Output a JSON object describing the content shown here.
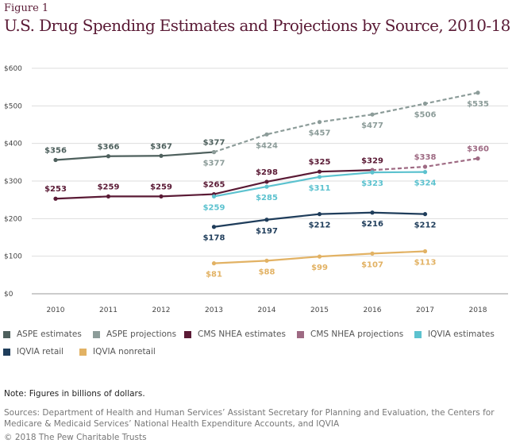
{
  "figure_label": "Figure 1",
  "chart_data": {
    "type": "line",
    "title": "U.S. Drug Spending Estimates and Projections by Source, 2010-18",
    "x": [
      2010,
      2011,
      2012,
      2013,
      2014,
      2015,
      2016,
      2017,
      2018
    ],
    "x_tick_labels": [
      "2010",
      "2011",
      "2012",
      "2013",
      "2014",
      "2015",
      "2016",
      "2017",
      "2018"
    ],
    "y_tick_labels": [
      "$0",
      "$100",
      "$200",
      "$300",
      "$400",
      "$500",
      "$600"
    ],
    "ylim": [
      0,
      600
    ],
    "grid": true,
    "legend_position": "bottom",
    "series": [
      {
        "name": "ASPE estimates",
        "color": "#4e605d",
        "dashed": false,
        "label_pos": "above",
        "points": [
          [
            2010,
            356
          ],
          [
            2011,
            366
          ],
          [
            2012,
            367
          ],
          [
            2013,
            377
          ]
        ],
        "labels": [
          "$356",
          "$366",
          "$367",
          "$377"
        ]
      },
      {
        "name": "ASPE projections",
        "color": "#8c9c99",
        "dashed": true,
        "label_pos": "below",
        "points": [
          [
            2013,
            377
          ],
          [
            2014,
            424
          ],
          [
            2015,
            457
          ],
          [
            2016,
            477
          ],
          [
            2017,
            506
          ],
          [
            2018,
            535
          ]
        ],
        "labels": [
          "$377",
          "$424",
          "$457",
          "$477",
          "$506",
          "$535"
        ]
      },
      {
        "name": "CMS NHEA estimates",
        "color": "#5a1a35",
        "dashed": false,
        "label_pos": "above",
        "points": [
          [
            2010,
            253
          ],
          [
            2011,
            259
          ],
          [
            2012,
            259
          ],
          [
            2013,
            265
          ],
          [
            2014,
            298
          ],
          [
            2015,
            325
          ],
          [
            2016,
            329
          ]
        ],
        "labels": [
          "$253",
          "$259",
          "$259",
          "$265",
          "$298",
          "$325",
          "$329"
        ]
      },
      {
        "name": "CMS NHEA projections",
        "color": "#9e6a83",
        "dashed": true,
        "label_pos": "above",
        "points": [
          [
            2016,
            329
          ],
          [
            2017,
            338
          ],
          [
            2018,
            360
          ]
        ],
        "labels": [
          "",
          "$338",
          "$360"
        ]
      },
      {
        "name": "IQVIA estimates",
        "color": "#5cc2cf",
        "dashed": false,
        "label_pos": "below",
        "points": [
          [
            2013,
            259
          ],
          [
            2014,
            285
          ],
          [
            2015,
            311
          ],
          [
            2016,
            323
          ],
          [
            2017,
            324
          ]
        ],
        "labels": [
          "$259",
          "$285",
          "$311",
          "$323",
          "$324"
        ]
      },
      {
        "name": "IQVIA retail",
        "color": "#1f3d5b",
        "dashed": false,
        "label_pos": "below",
        "points": [
          [
            2013,
            178
          ],
          [
            2014,
            197
          ],
          [
            2015,
            212
          ],
          [
            2016,
            216
          ],
          [
            2017,
            212
          ]
        ],
        "labels": [
          "$178",
          "$197",
          "$212",
          "$216",
          "$212"
        ]
      },
      {
        "name": "IQVIA nonretail",
        "color": "#e2b264",
        "dashed": false,
        "label_pos": "below",
        "points": [
          [
            2013,
            81
          ],
          [
            2014,
            88
          ],
          [
            2015,
            99
          ],
          [
            2016,
            107
          ],
          [
            2017,
            113
          ]
        ],
        "labels": [
          "$81",
          "$88",
          "$99",
          "$107",
          "$113"
        ]
      }
    ]
  },
  "note": "Note: Figures in billions of dollars.",
  "sources": "Sources: Department of Health and Human Services’ Assistant Secretary for Planning and Evaluation, the Centers for Medicare & Medicaid Services’ National Health Expenditure Accounts, and IQVIA",
  "copyright": "© 2018 The Pew Charitable Trusts"
}
